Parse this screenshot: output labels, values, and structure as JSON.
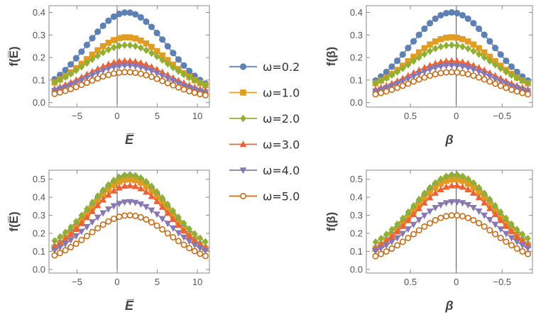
{
  "legend": [
    {
      "label": "ω=0.2",
      "color": "#5E81B5",
      "marker": "circle"
    },
    {
      "label": "ω=1.0",
      "color": "#E19C24",
      "marker": "square"
    },
    {
      "label": "ω=2.0",
      "color": "#8FB032",
      "marker": "diamond"
    },
    {
      "label": "ω=3.0",
      "color": "#EB6235",
      "marker": "triangle-up"
    },
    {
      "label": "ω=4.0",
      "color": "#8778B3",
      "marker": "triangle-down"
    },
    {
      "label": "ω=5.0",
      "color": "#C56E1A",
      "marker": "open-circle"
    }
  ],
  "chart_data": [
    {
      "type": "scatter",
      "title": "",
      "xlabel": "E̅",
      "ylabel": "f(E̅)",
      "xlim": [
        -8.5,
        11.5
      ],
      "ylim": [
        -0.02,
        0.43
      ],
      "xticks": [
        -5,
        0,
        5,
        10
      ],
      "xtick_labels": [
        "−5",
        "0",
        "5",
        "10"
      ],
      "yticks": [
        0.0,
        0.1,
        0.2,
        0.3,
        0.4
      ],
      "ytick_labels": [
        "0.0",
        "0.1",
        "0.2",
        "0.3",
        "0.4"
      ],
      "x_reversed": false,
      "vline": 0,
      "x": {
        "start": -7.8,
        "end": 11.0,
        "n": 29
      },
      "center": 1.2,
      "width": 5.0,
      "series": [
        {
          "name": "ω=0.2",
          "peak": 0.4,
          "base": 0.03
        },
        {
          "name": "ω=1.0",
          "peak": 0.29,
          "base": 0.04
        },
        {
          "name": "ω=2.0",
          "peak": 0.255,
          "base": 0.05
        },
        {
          "name": "ω=3.0",
          "peak": 0.185,
          "base": 0.03
        },
        {
          "name": "ω=4.0",
          "peak": 0.165,
          "base": 0.025
        },
        {
          "name": "ω=5.0",
          "peak": 0.135,
          "base": 0.015
        }
      ]
    },
    {
      "type": "scatter",
      "title": "",
      "xlabel": "β",
      "ylabel": "f(β)",
      "xlim": [
        0.98,
        -0.83
      ],
      "ylim": [
        -0.02,
        0.43
      ],
      "xticks": [
        0.5,
        0,
        -0.5
      ],
      "xtick_labels": [
        "0.5",
        "0",
        "−0.5"
      ],
      "yticks": [
        0.0,
        0.1,
        0.2,
        0.3,
        0.4
      ],
      "ytick_labels": [
        "0.0",
        "0.1",
        "0.2",
        "0.3",
        "0.4"
      ],
      "x_reversed": true,
      "vline": 0,
      "x": {
        "start": 0.88,
        "end": -0.78,
        "n": 29
      },
      "center": 0.05,
      "width": 0.45,
      "series": [
        {
          "name": "ω=0.2",
          "peak": 0.4,
          "base": 0.03
        },
        {
          "name": "ω=1.0",
          "peak": 0.29,
          "base": 0.04
        },
        {
          "name": "ω=2.0",
          "peak": 0.255,
          "base": 0.05
        },
        {
          "name": "ω=3.0",
          "peak": 0.185,
          "base": 0.03
        },
        {
          "name": "ω=4.0",
          "peak": 0.165,
          "base": 0.025
        },
        {
          "name": "ω=5.0",
          "peak": 0.135,
          "base": 0.015
        }
      ]
    },
    {
      "type": "scatter",
      "title": "",
      "xlabel": "E̅",
      "ylabel": "f(E̅)",
      "xlim": [
        -8.5,
        11.5
      ],
      "ylim": [
        -0.02,
        0.55
      ],
      "xticks": [
        -5,
        0,
        5,
        10
      ],
      "xtick_labels": [
        "−5",
        "0",
        "5",
        "10"
      ],
      "yticks": [
        0.0,
        0.1,
        0.2,
        0.3,
        0.4,
        0.5
      ],
      "ytick_labels": [
        "0.0",
        "0.1",
        "0.2",
        "0.3",
        "0.4",
        "0.5"
      ],
      "x_reversed": false,
      "vline": 0,
      "x": {
        "start": -7.8,
        "end": 11.0,
        "n": 29
      },
      "center": 1.5,
      "width": 5.0,
      "series": [
        {
          "name": "ω=0.2",
          "peak": 0.52,
          "base": 0.04
        },
        {
          "name": "ω=1.0",
          "peak": 0.5,
          "base": 0.04
        },
        {
          "name": "ω=2.0",
          "peak": 0.525,
          "base": 0.08
        },
        {
          "name": "ω=3.0",
          "peak": 0.465,
          "base": 0.05
        },
        {
          "name": "ω=4.0",
          "peak": 0.375,
          "base": 0.05
        },
        {
          "name": "ω=5.0",
          "peak": 0.3,
          "base": 0.03
        }
      ]
    },
    {
      "type": "scatter",
      "title": "",
      "xlabel": "β",
      "ylabel": "f(β)",
      "xlim": [
        0.98,
        -0.83
      ],
      "ylim": [
        -0.02,
        0.55
      ],
      "xticks": [
        0.5,
        0,
        -0.5
      ],
      "xtick_labels": [
        "0.5",
        "0",
        "−0.5"
      ],
      "yticks": [
        0.0,
        0.1,
        0.2,
        0.3,
        0.4,
        0.5
      ],
      "ytick_labels": [
        "0.0",
        "0.1",
        "0.2",
        "0.3",
        "0.4",
        "0.5"
      ],
      "x_reversed": true,
      "vline": 0,
      "x": {
        "start": 0.88,
        "end": -0.78,
        "n": 29
      },
      "center": 0.02,
      "width": 0.45,
      "series": [
        {
          "name": "ω=0.2",
          "peak": 0.52,
          "base": 0.04
        },
        {
          "name": "ω=1.0",
          "peak": 0.5,
          "base": 0.04
        },
        {
          "name": "ω=2.0",
          "peak": 0.525,
          "base": 0.08
        },
        {
          "name": "ω=3.0",
          "peak": 0.465,
          "base": 0.05
        },
        {
          "name": "ω=4.0",
          "peak": 0.375,
          "base": 0.05
        },
        {
          "name": "ω=5.0",
          "peak": 0.3,
          "base": 0.03
        }
      ]
    }
  ]
}
